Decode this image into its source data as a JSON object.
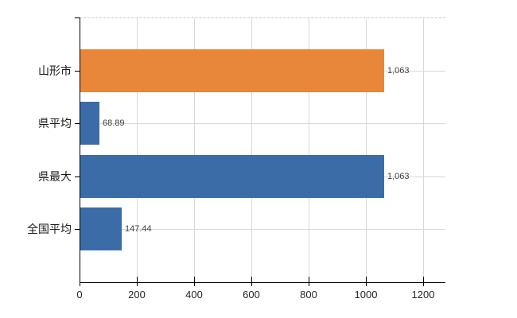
{
  "chart_data": {
    "type": "bar",
    "orientation": "horizontal",
    "title": "",
    "xlabel": "",
    "ylabel": "",
    "categories": [
      "山形市",
      "県平均",
      "県最大",
      "全国平均"
    ],
    "values": [
      1063,
      68.89,
      1063,
      147.44
    ],
    "value_labels": [
      "1,063",
      "68.89",
      "1,063",
      "147.44"
    ],
    "bar_colors": [
      "#e8873a",
      "#3b6ca8",
      "#3b6ca8",
      "#3b6ca8"
    ],
    "x_ticks": [
      0,
      200,
      400,
      600,
      800,
      1000,
      1200
    ],
    "x_tick_labels": [
      "0",
      "200",
      "400",
      "600",
      "800",
      "1000",
      "1200"
    ],
    "xlim": [
      0,
      1278
    ],
    "grid": true,
    "legend": false,
    "colors": {
      "grid": "#d9d9d9",
      "top_border": "#c8c8c8",
      "axis": "#000000",
      "tick_text": "#262626",
      "value_text": "#404040",
      "category_text": "#1a1a1a",
      "background": "#ffffff"
    }
  }
}
